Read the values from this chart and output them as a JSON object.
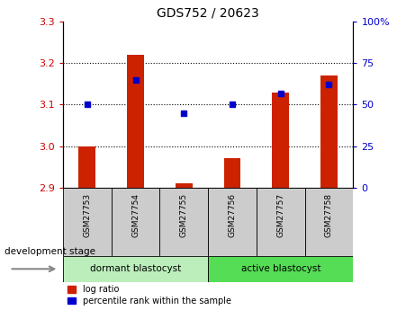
{
  "title": "GDS752 / 20623",
  "samples": [
    "GSM27753",
    "GSM27754",
    "GSM27755",
    "GSM27756",
    "GSM27757",
    "GSM27758"
  ],
  "log_ratio_values": [
    3.0,
    3.22,
    2.91,
    2.97,
    3.13,
    3.17
  ],
  "log_ratio_base": 2.9,
  "percentile_rank": [
    50,
    65,
    45,
    50,
    57,
    62
  ],
  "ylim_left": [
    2.9,
    3.3
  ],
  "ylim_right": [
    0,
    100
  ],
  "yticks_left": [
    2.9,
    3.0,
    3.1,
    3.2,
    3.3
  ],
  "yticks_right": [
    0,
    25,
    50,
    75,
    100
  ],
  "bar_color": "#cc2200",
  "dot_color": "#0000cc",
  "group1_label": "dormant blastocyst",
  "group2_label": "active blastocyst",
  "group1_color": "#bbeebb",
  "group2_color": "#55dd55",
  "group1_indices": [
    0,
    1,
    2
  ],
  "group2_indices": [
    3,
    4,
    5
  ],
  "legend_bar_label": "log ratio",
  "legend_dot_label": "percentile rank within the sample",
  "dev_stage_label": "development stage",
  "tick_color_left": "#cc0000",
  "tick_color_right": "#0000cc",
  "label_box_color": "#cccccc",
  "bar_width": 0.35
}
